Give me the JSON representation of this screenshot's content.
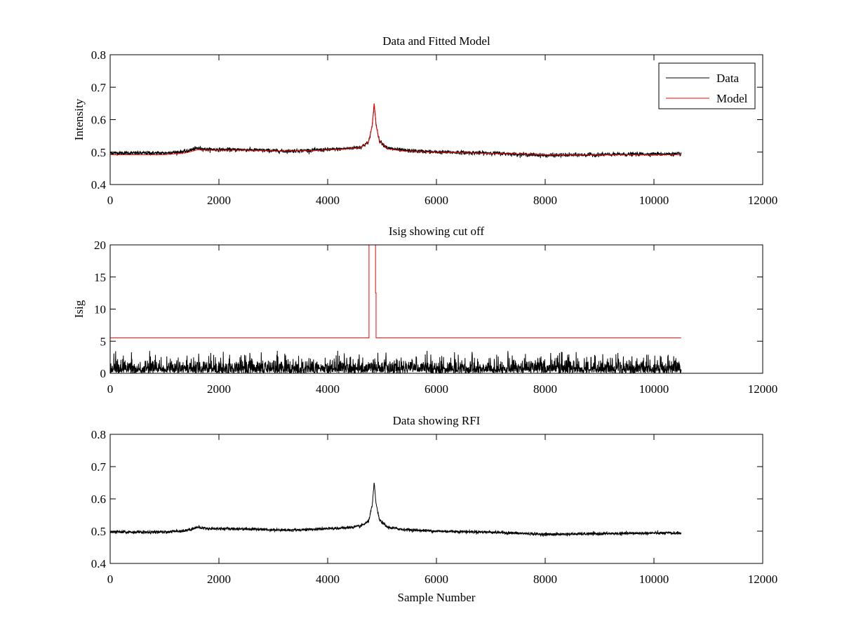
{
  "figure": {
    "background": "#ffffff"
  },
  "colors": {
    "data": "#000000",
    "model": "#ff0000"
  },
  "chart_data": [
    {
      "type": "line",
      "title": "Data and Fitted Model",
      "xlabel": "",
      "ylabel": "Intensity",
      "xlim": [
        0,
        12000
      ],
      "ylim": [
        0.4,
        0.8
      ],
      "xticks": [
        0,
        2000,
        4000,
        6000,
        8000,
        10000,
        12000
      ],
      "yticks": [
        0.4,
        0.5,
        0.6,
        0.7,
        0.8
      ],
      "xtick_labels": [
        "0",
        "2000",
        "4000",
        "6000",
        "8000",
        "10000",
        "12000"
      ],
      "ytick_labels": [
        "0.4",
        "0.5",
        "0.6",
        "0.7",
        "0.8"
      ],
      "grid": false,
      "legend": {
        "placement": "top-right",
        "entries": [
          "Data",
          "Model"
        ]
      },
      "series": [
        {
          "name": "Data",
          "color": "#000000",
          "noise": 0.005,
          "x": [
            0,
            500,
            1000,
            1400,
            1600,
            1800,
            2500,
            3200,
            3800,
            4300,
            4600,
            4750,
            4820,
            4855,
            4890,
            4950,
            5100,
            5400,
            6000,
            7000,
            8000,
            9000,
            10000,
            10500
          ],
          "y": [
            0.497,
            0.497,
            0.497,
            0.502,
            0.512,
            0.508,
            0.507,
            0.503,
            0.506,
            0.51,
            0.515,
            0.53,
            0.58,
            0.65,
            0.585,
            0.535,
            0.512,
            0.505,
            0.5,
            0.497,
            0.49,
            0.492,
            0.494,
            0.494
          ]
        },
        {
          "name": "Model",
          "color": "#ff0000",
          "noise": 0,
          "x": [
            0,
            500,
            1000,
            1400,
            1600,
            1800,
            2500,
            3200,
            3800,
            4300,
            4600,
            4750,
            4820,
            4855,
            4890,
            4950,
            5100,
            5400,
            6000,
            7000,
            8000,
            9000,
            10000,
            10500
          ],
          "y": [
            0.492,
            0.492,
            0.492,
            0.498,
            0.507,
            0.506,
            0.506,
            0.503,
            0.505,
            0.509,
            0.514,
            0.53,
            0.582,
            0.652,
            0.583,
            0.535,
            0.51,
            0.503,
            0.5,
            0.496,
            0.492,
            0.492,
            0.492,
            0.492
          ]
        }
      ]
    },
    {
      "type": "line",
      "title": "Isig showing cut off",
      "xlabel": "",
      "ylabel": "Isig",
      "xlim": [
        0,
        12000
      ],
      "ylim": [
        0,
        20
      ],
      "xticks": [
        0,
        2000,
        4000,
        6000,
        8000,
        10000,
        12000
      ],
      "yticks": [
        0,
        5,
        10,
        15,
        20
      ],
      "xtick_labels": [
        "0",
        "2000",
        "4000",
        "6000",
        "8000",
        "10000",
        "12000"
      ],
      "ytick_labels": [
        "0",
        "5",
        "10",
        "15",
        "20"
      ],
      "grid": false,
      "series": [
        {
          "color": "#000000",
          "noise_band": [
            0,
            2.5
          ],
          "peak": 3.5,
          "x": [
            0,
            10500
          ]
        },
        {
          "color": "#ff0000",
          "x": [
            0,
            4760,
            4760,
            4880,
            4880,
            4890,
            4890,
            10500
          ],
          "y": [
            5.5,
            5.5,
            20,
            20,
            12.5,
            12.5,
            5.5,
            5.5
          ]
        }
      ]
    },
    {
      "type": "line",
      "title": "Data showing RFI",
      "xlabel": "Sample Number",
      "ylabel": "",
      "xlim": [
        0,
        12000
      ],
      "ylim": [
        0.4,
        0.8
      ],
      "xticks": [
        0,
        2000,
        4000,
        6000,
        8000,
        10000,
        12000
      ],
      "yticks": [
        0.4,
        0.5,
        0.6,
        0.7,
        0.8
      ],
      "xtick_labels": [
        "0",
        "2000",
        "4000",
        "6000",
        "8000",
        "10000",
        "12000"
      ],
      "ytick_labels": [
        "0.4",
        "0.5",
        "0.6",
        "0.7",
        "0.8"
      ],
      "grid": false,
      "series": [
        {
          "color": "#000000",
          "noise": 0.004,
          "x": [
            0,
            500,
            1000,
            1400,
            1600,
            1800,
            2500,
            3200,
            3800,
            4300,
            4600,
            4750,
            4820,
            4855,
            4890,
            4950,
            5100,
            5400,
            6000,
            7000,
            8000,
            9000,
            10000,
            10500
          ],
          "y": [
            0.497,
            0.497,
            0.497,
            0.502,
            0.512,
            0.508,
            0.507,
            0.503,
            0.506,
            0.51,
            0.515,
            0.53,
            0.58,
            0.65,
            0.585,
            0.535,
            0.512,
            0.505,
            0.5,
            0.497,
            0.49,
            0.492,
            0.494,
            0.494
          ]
        }
      ]
    }
  ]
}
